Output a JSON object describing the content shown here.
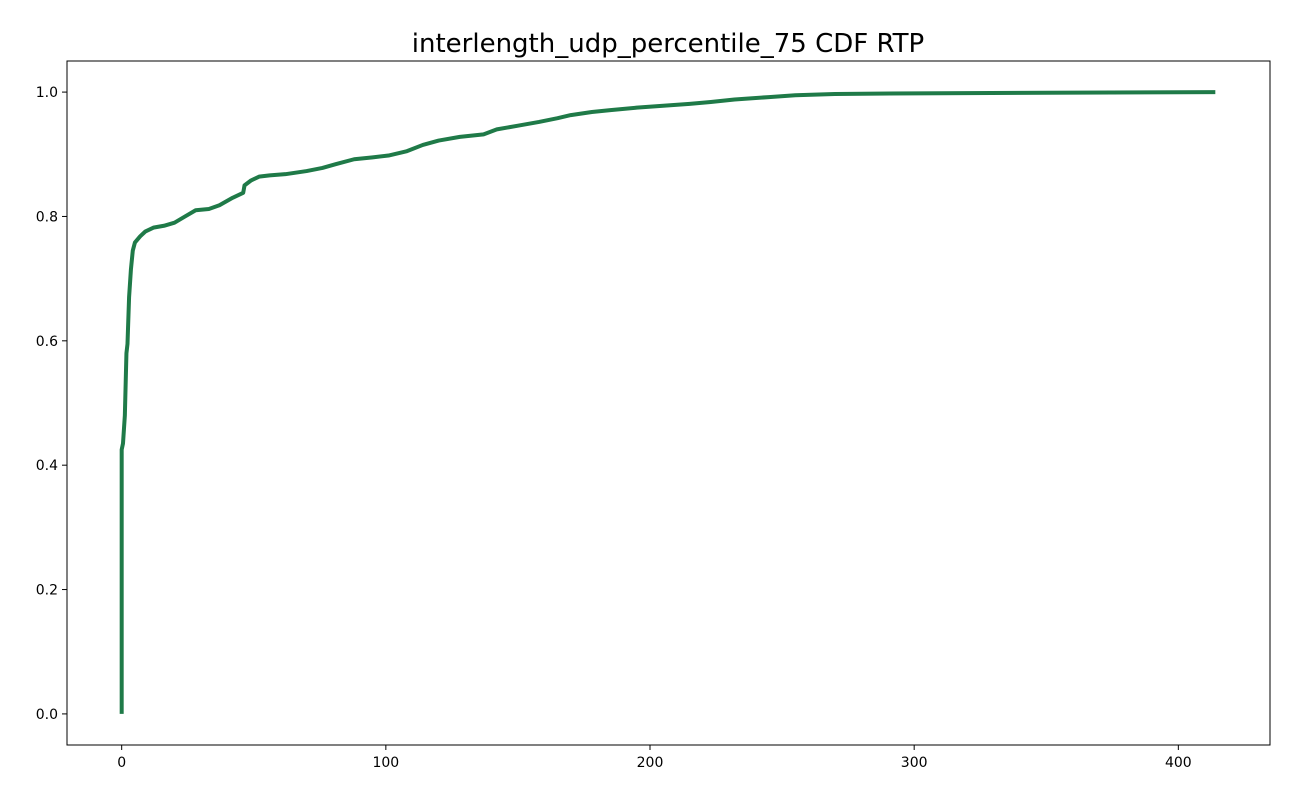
{
  "chart_data": {
    "type": "line",
    "title": "interlength_udp_percentile_75 CDF RTP",
    "xlabel": "",
    "ylabel": "",
    "xlim": [
      -20.7,
      434.7
    ],
    "ylim": [
      -0.05,
      1.05
    ],
    "xticks": [
      0,
      100,
      200,
      300,
      400
    ],
    "yticks": [
      0.0,
      0.2,
      0.4,
      0.6,
      0.8,
      1.0
    ],
    "xtick_labels": [
      "0",
      "100",
      "200",
      "300",
      "400"
    ],
    "ytick_labels": [
      "0.0",
      "0.2",
      "0.4",
      "0.6",
      "0.8",
      "1.0"
    ],
    "grid": false,
    "legend": "none",
    "series": [
      {
        "color": "#1f7a48",
        "x": [
          0,
          0,
          0.5,
          1.2,
          1.8,
          2.2,
          2.8,
          3.5,
          4.2,
          5.0,
          5.8,
          7,
          9,
          12,
          16,
          20,
          24,
          28,
          33,
          37,
          42,
          46,
          46.5,
          49,
          52,
          56,
          62,
          70,
          76,
          81,
          88,
          95,
          101,
          108,
          114,
          120,
          128,
          137,
          142,
          150,
          158,
          165,
          170,
          178,
          185,
          195,
          205,
          215,
          223,
          232,
          245,
          255,
          270,
          300,
          350,
          414
        ],
        "y": [
          0.0,
          0.425,
          0.435,
          0.48,
          0.58,
          0.595,
          0.67,
          0.715,
          0.745,
          0.758,
          0.762,
          0.768,
          0.776,
          0.782,
          0.785,
          0.79,
          0.8,
          0.81,
          0.812,
          0.818,
          0.83,
          0.838,
          0.85,
          0.858,
          0.864,
          0.866,
          0.868,
          0.873,
          0.878,
          0.884,
          0.892,
          0.895,
          0.898,
          0.905,
          0.915,
          0.922,
          0.928,
          0.932,
          0.94,
          0.946,
          0.952,
          0.958,
          0.963,
          0.968,
          0.971,
          0.975,
          0.978,
          0.981,
          0.984,
          0.988,
          0.992,
          0.995,
          0.997,
          0.998,
          0.999,
          1.0
        ]
      }
    ]
  }
}
